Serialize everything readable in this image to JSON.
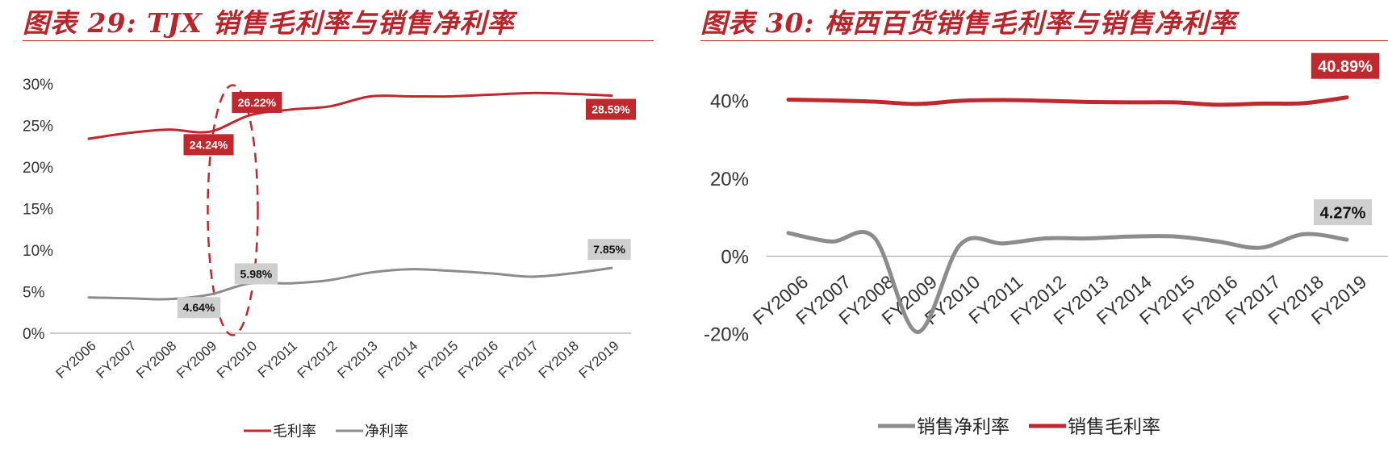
{
  "charts_meta": {
    "left_title": "图表 29:  TJX 销售毛利率与销售净利率",
    "right_title": "图表 30:  梅西百货销售毛利率与销售净利率"
  },
  "chart_data": [
    {
      "type": "line",
      "title": "图表 29:  TJX 销售毛利率与销售净利率",
      "categories": [
        "FY2006",
        "FY2007",
        "FY2008",
        "FY2009",
        "FY2010",
        "FY2011",
        "FY2012",
        "FY2013",
        "FY2014",
        "FY2015",
        "FY2016",
        "FY2017",
        "FY2018",
        "FY2019"
      ],
      "y_ticks": [
        "0%",
        "5%",
        "10%",
        "15%",
        "20%",
        "25%",
        "30%"
      ],
      "ylim": [
        0,
        30
      ],
      "grid": false,
      "legend_position": "bottom",
      "series": [
        {
          "name": "毛利率",
          "color": "#c0282d",
          "values": [
            23.4,
            24.1,
            24.5,
            24.24,
            26.22,
            26.9,
            27.3,
            28.5,
            28.5,
            28.5,
            28.7,
            28.9,
            28.8,
            28.59
          ]
        },
        {
          "name": "净利率",
          "color": "#8c8c8c",
          "values": [
            4.3,
            4.2,
            4.1,
            4.64,
            5.98,
            6.0,
            6.4,
            7.3,
            7.7,
            7.5,
            7.2,
            6.8,
            7.2,
            7.85
          ]
        }
      ],
      "annotations": [
        {
          "series": 0,
          "index": 3,
          "label": "24.24%"
        },
        {
          "series": 0,
          "index": 4,
          "label": "26.22%"
        },
        {
          "series": 0,
          "index": 13,
          "label": "28.59%"
        },
        {
          "series": 1,
          "index": 3,
          "label": "4.64%"
        },
        {
          "series": 1,
          "index": 4,
          "label": "5.98%"
        },
        {
          "series": 1,
          "index": 13,
          "label": "7.85%"
        }
      ],
      "highlight": {
        "indices": [
          3,
          4
        ],
        "shape": "dashed-ellipse",
        "color": "#c0282d"
      }
    },
    {
      "type": "line",
      "title": "图表 30:  梅西百货销售毛利率与销售净利率",
      "categories": [
        "FY2006",
        "FY2007",
        "FY2008",
        "FY2009",
        "FY2010",
        "FY2011",
        "FY2012",
        "FY2013",
        "FY2014",
        "FY2015",
        "FY2016",
        "FY2017",
        "FY2018",
        "FY2019"
      ],
      "y_ticks": [
        "-20%",
        "0%",
        "20%",
        "40%"
      ],
      "ylim": [
        -20,
        40
      ],
      "grid": false,
      "legend_position": "bottom",
      "series": [
        {
          "name": "销售净利率",
          "color": "#8c8c8c",
          "values": [
            6.0,
            3.8,
            4.8,
            -19.5,
            3.0,
            3.3,
            4.6,
            4.6,
            5.1,
            5.1,
            3.8,
            2.2,
            5.7,
            4.27
          ]
        },
        {
          "name": "销售毛利率",
          "color": "#c0282d",
          "values": [
            40.3,
            40.1,
            39.8,
            39.2,
            40.0,
            40.2,
            40.0,
            39.7,
            39.6,
            39.6,
            39.0,
            39.3,
            39.4,
            40.89
          ]
        }
      ],
      "annotations": [
        {
          "series": 1,
          "index": 13,
          "label": "40.89%"
        },
        {
          "series": 0,
          "index": 13,
          "label": "4.27%"
        }
      ]
    }
  ]
}
